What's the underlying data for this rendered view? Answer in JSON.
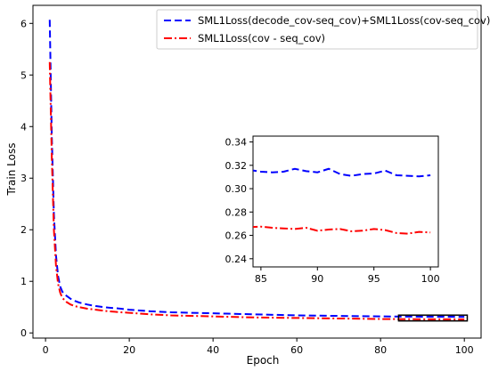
{
  "chart_data": [
    {
      "type": "line",
      "xlabel": "Epoch",
      "ylabel": "Train Loss",
      "xlim": [
        -3,
        104
      ],
      "ylim": [
        -0.1,
        6.35
      ],
      "xticks": [
        0,
        20,
        40,
        60,
        80,
        100
      ],
      "yticks": [
        0,
        1,
        2,
        3,
        4,
        5,
        6
      ],
      "grid": false,
      "legend_position": "top-right",
      "series": [
        {
          "name": "SML1Loss(decode_cov-seq_cov)+SML1Loss(cov-seq_cov)",
          "color": "#0000ff",
          "style": "dashed",
          "x": [
            1,
            1.5,
            2,
            2.5,
            3,
            3.5,
            4,
            5,
            6,
            7,
            8,
            10,
            12,
            15,
            18,
            20,
            25,
            30,
            40,
            50,
            60,
            70,
            80,
            85,
            90,
            95,
            100
          ],
          "y": [
            6.07,
            3.8,
            2.3,
            1.5,
            1.1,
            0.9,
            0.8,
            0.72,
            0.66,
            0.62,
            0.59,
            0.55,
            0.52,
            0.49,
            0.47,
            0.45,
            0.42,
            0.4,
            0.38,
            0.36,
            0.34,
            0.33,
            0.32,
            0.317,
            0.315,
            0.315,
            0.311
          ]
        },
        {
          "name": "SML1Loss(cov - seq_cov)",
          "color": "#ff0000",
          "style": "dashdot",
          "x": [
            1,
            1.5,
            2,
            2.5,
            3,
            3.5,
            4,
            5,
            6,
            7,
            8,
            10,
            12,
            15,
            18,
            20,
            25,
            30,
            40,
            50,
            60,
            70,
            80,
            85,
            90,
            95,
            100
          ],
          "y": [
            5.25,
            3.4,
            2.0,
            1.3,
            0.95,
            0.78,
            0.68,
            0.6,
            0.55,
            0.52,
            0.5,
            0.47,
            0.45,
            0.42,
            0.4,
            0.39,
            0.36,
            0.34,
            0.32,
            0.3,
            0.29,
            0.28,
            0.27,
            0.267,
            0.265,
            0.265,
            0.262
          ]
        }
      ]
    },
    {
      "type": "line",
      "title": "",
      "xlim": [
        84.3,
        100.7
      ],
      "ylim": [
        0.233,
        0.345
      ],
      "xticks": [
        85,
        90,
        95,
        100
      ],
      "yticks": [
        0.24,
        0.26,
        0.28,
        0.3,
        0.32,
        0.34
      ],
      "grid": false,
      "series": [
        {
          "name": "SML1Loss(decode_cov-seq_cov)+SML1Loss(cov-seq_cov)",
          "color": "#0000ff",
          "style": "dashed",
          "x": [
            84,
            85,
            86,
            87,
            88,
            89,
            90,
            91,
            92,
            93,
            94,
            95,
            96,
            97,
            98,
            99,
            100
          ],
          "y": [
            0.316,
            0.3145,
            0.314,
            0.3145,
            0.317,
            0.315,
            0.314,
            0.317,
            0.3125,
            0.311,
            0.3125,
            0.313,
            0.3155,
            0.3115,
            0.311,
            0.3105,
            0.3115
          ]
        },
        {
          "name": "SML1Loss(cov - seq_cov)",
          "color": "#ff0000",
          "style": "dashdot",
          "x": [
            84,
            85,
            86,
            87,
            88,
            89,
            90,
            91,
            92,
            93,
            94,
            95,
            96,
            97,
            98,
            99,
            100
          ],
          "y": [
            0.267,
            0.2675,
            0.2665,
            0.266,
            0.2655,
            0.2665,
            0.264,
            0.265,
            0.2655,
            0.2635,
            0.264,
            0.2655,
            0.2645,
            0.262,
            0.2615,
            0.263,
            0.2625
          ]
        }
      ]
    }
  ]
}
